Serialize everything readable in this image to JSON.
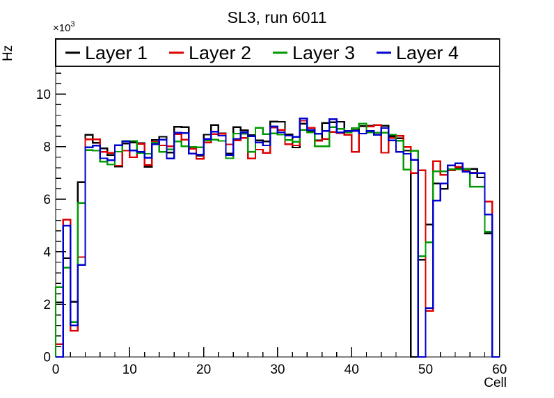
{
  "chart_data": {
    "type": "line",
    "style": "step-histogram-outline",
    "title": "SL3, run 6011",
    "xlabel": "Cell",
    "ylabel": "Hz",
    "y_multiplier": {
      "base": "×10",
      "exponent": "3"
    },
    "xlim": [
      0,
      60
    ],
    "ylim": [
      0,
      12.1
    ],
    "bin_width": 1,
    "grid": false,
    "xticks": {
      "major": [
        0,
        10,
        20,
        30,
        40,
        50,
        60
      ],
      "minor_step": 2
    },
    "yticks": {
      "major": [
        0,
        2,
        4,
        6,
        8,
        10
      ],
      "minor_step": 0.4
    },
    "legend": {
      "position": "top-inside-full-width",
      "border_color": "#000000",
      "fill": "#ffffff"
    },
    "series": [
      {
        "name": "Layer 1",
        "color": "#000000",
        "values": [
          2.07,
          3.76,
          2.1,
          6.65,
          8.45,
          8.15,
          7.94,
          7.69,
          7.25,
          8.12,
          8.16,
          8.14,
          7.23,
          8.25,
          8.38,
          7.78,
          8.76,
          8.74,
          7.96,
          7.66,
          8.46,
          8.82,
          8.51,
          7.74,
          8.74,
          8.62,
          8.44,
          8.24,
          8.2,
          8.96,
          8.95,
          8.47,
          7.97,
          8.88,
          8.59,
          8.24,
          8.9,
          8.93,
          8.95,
          8.6,
          8.62,
          8.78,
          8.8,
          8.82,
          8.8,
          8.4,
          8.32,
          7.85,
          0.0,
          3.7,
          5.04,
          6.6,
          6.4,
          7.15,
          7.19,
          7.16,
          7.16,
          6.83,
          4.7,
          0.0
        ]
      },
      {
        "name": "Layer 2",
        "color": "#dd0000",
        "values": [
          0.48,
          5.22,
          1.0,
          3.8,
          8.28,
          8.28,
          7.8,
          7.76,
          7.28,
          7.85,
          7.6,
          8.11,
          7.3,
          8.18,
          8.05,
          8.02,
          8.48,
          8.27,
          7.92,
          7.54,
          8.16,
          8.48,
          8.49,
          8.09,
          8.24,
          8.33,
          7.55,
          7.89,
          7.76,
          8.73,
          8.64,
          8.1,
          8.05,
          8.99,
          8.72,
          8.22,
          8.29,
          8.56,
          8.52,
          8.45,
          7.8,
          8.5,
          8.77,
          8.82,
          7.77,
          8.33,
          8.41,
          7.99,
          7.0,
          7.1,
          1.75,
          7.45,
          6.93,
          7.1,
          7.23,
          7.1,
          7.01,
          7.0,
          5.91,
          0.0
        ]
      },
      {
        "name": "Layer 3",
        "color": "#009900",
        "values": [
          2.65,
          3.4,
          1.33,
          5.86,
          7.87,
          7.85,
          7.43,
          7.32,
          7.81,
          8.22,
          8.22,
          7.76,
          7.73,
          8.15,
          7.8,
          7.9,
          8.2,
          8.02,
          7.99,
          7.98,
          8.24,
          8.27,
          8.22,
          7.56,
          8.5,
          8.49,
          7.8,
          8.72,
          8.48,
          8.51,
          8.46,
          8.25,
          8.19,
          8.64,
          8.55,
          8.02,
          8.02,
          8.74,
          8.68,
          8.55,
          8.7,
          8.88,
          8.55,
          8.53,
          8.53,
          8.46,
          8.23,
          7.13,
          7.84,
          3.83,
          4.36,
          7.06,
          7.06,
          7.14,
          7.14,
          7.15,
          6.48,
          6.48,
          4.76,
          0.0
        ]
      },
      {
        "name": "Layer 4",
        "color": "#0000cc",
        "values": [
          0.0,
          5.0,
          1.2,
          3.5,
          7.98,
          8.04,
          7.56,
          7.49,
          8.06,
          8.2,
          7.86,
          7.8,
          7.58,
          8.1,
          8.27,
          7.55,
          8.53,
          8.52,
          7.74,
          7.7,
          8.29,
          8.57,
          8.42,
          7.68,
          8.3,
          8.55,
          8.4,
          8.16,
          8.05,
          8.77,
          8.55,
          8.42,
          8.37,
          9.07,
          8.64,
          8.49,
          8.6,
          9.05,
          8.55,
          8.6,
          8.6,
          8.5,
          8.6,
          8.45,
          8.71,
          8.24,
          7.8,
          7.73,
          7.5,
          0.0,
          1.86,
          5.95,
          6.6,
          7.29,
          7.37,
          7.05,
          7.0,
          7.0,
          5.42,
          0.0
        ]
      }
    ]
  }
}
